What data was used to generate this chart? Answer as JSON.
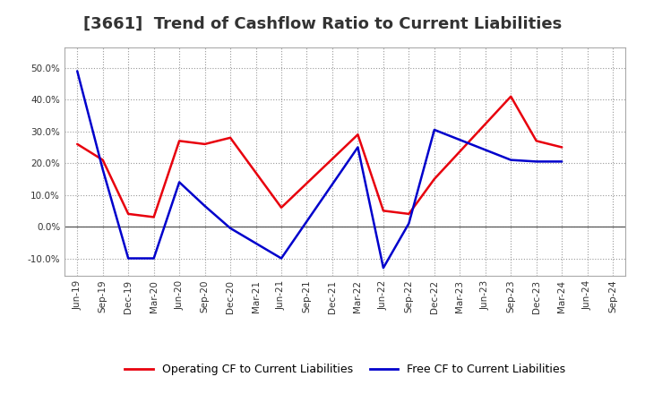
{
  "title": "[3661]  Trend of Cashflow Ratio to Current Liabilities",
  "x_labels": [
    "Jun-19",
    "Sep-19",
    "Dec-19",
    "Mar-20",
    "Jun-20",
    "Sep-20",
    "Dec-20",
    "Mar-21",
    "Jun-21",
    "Sep-21",
    "Dec-21",
    "Mar-22",
    "Jun-22",
    "Sep-22",
    "Dec-22",
    "Mar-23",
    "Jun-23",
    "Sep-23",
    "Dec-23",
    "Mar-24",
    "Jun-24",
    "Sep-24"
  ],
  "operating_color": "#e8000d",
  "free_color": "#0000cc",
  "ylim": [
    -0.155,
    0.565
  ],
  "yticks": [
    -0.1,
    0.0,
    0.1,
    0.2,
    0.3,
    0.4,
    0.5
  ],
  "background_color": "#ffffff",
  "plot_bg_color": "#ffffff",
  "grid_color": "#999999",
  "title_fontsize": 13,
  "legend_fontsize": 9,
  "op_x": [
    0,
    1,
    2,
    3,
    4,
    5,
    6,
    8,
    11,
    12,
    13,
    14,
    17,
    18,
    19
  ],
  "op_y": [
    0.26,
    0.21,
    0.04,
    0.03,
    0.27,
    0.26,
    0.28,
    0.06,
    0.29,
    0.05,
    0.04,
    0.15,
    0.41,
    0.27,
    0.25
  ],
  "free_x": [
    0,
    1,
    2,
    3,
    4,
    5,
    6,
    8,
    11,
    12,
    13,
    14,
    17,
    18,
    19
  ],
  "free_y": [
    0.49,
    0.18,
    -0.1,
    -0.1,
    0.14,
    0.065,
    -0.005,
    -0.1,
    0.25,
    -0.13,
    0.01,
    0.305,
    0.21,
    0.205,
    0.205
  ]
}
